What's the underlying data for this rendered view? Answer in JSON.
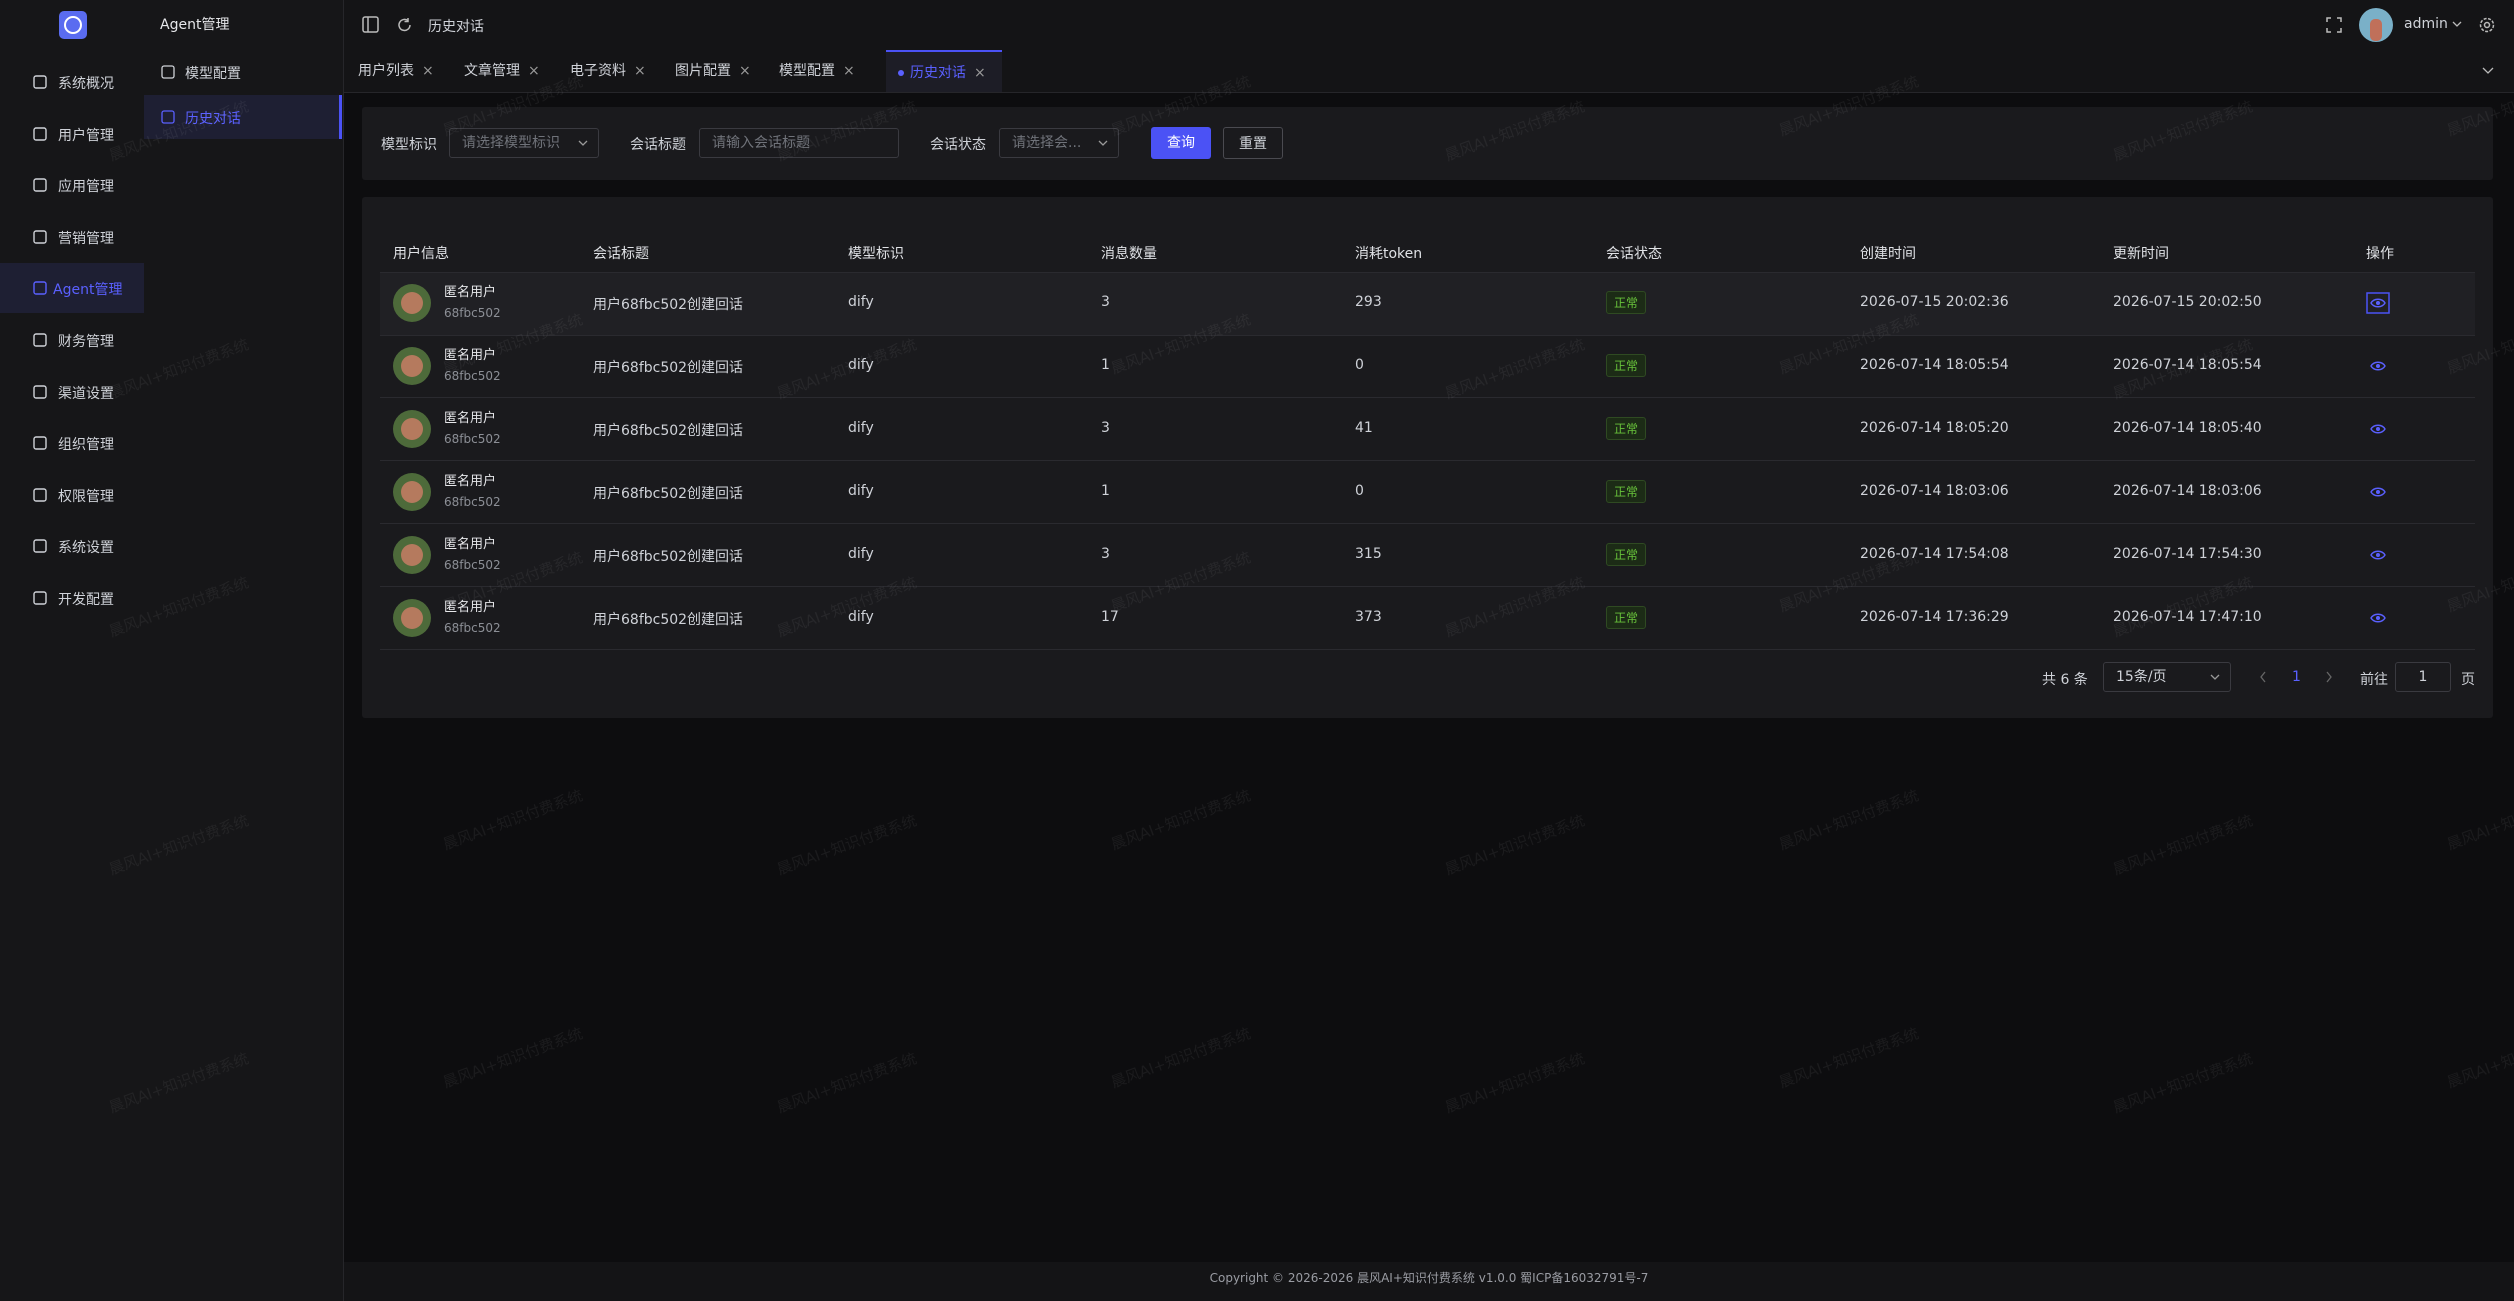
{
  "sidebar": {
    "items": [
      "系统概况",
      "用户管理",
      "应用管理",
      "营销管理",
      "Agent管理",
      "财务管理",
      "渠道设置",
      "组织管理",
      "权限管理",
      "系统设置",
      "开发配置"
    ]
  },
  "submenu": {
    "title": "Agent管理",
    "items": [
      "模型配置",
      "历史对话"
    ]
  },
  "header": {
    "breadcrumb": "历史对话",
    "user": "admin"
  },
  "tabs": [
    "用户列表",
    "文章管理",
    "电子资料",
    "图片配置",
    "模型配置",
    "历史对话"
  ],
  "filters": {
    "fields": [
      {
        "label": "模型标识",
        "placeholder": "请选择模型标识"
      },
      {
        "label": "会话标题",
        "placeholder": "请输入会话标题"
      },
      {
        "label": "会话状态",
        "placeholder": "请选择会..."
      }
    ],
    "buttons": [
      "查询",
      "重置"
    ]
  },
  "table": {
    "columns": [
      "用户信息",
      "会话标题",
      "模型标识",
      "消息数量",
      "消耗token",
      "会话状态",
      "创建时间",
      "更新时间",
      "操作"
    ],
    "rows": [
      [
        "匿名用户",
        "68fbc502",
        "用户68fbc502创建回话",
        "dify",
        3,
        293,
        "正常",
        "2026-07-15 20:02:36",
        "2026-07-15 20:02:50"
      ],
      [
        "匿名用户",
        "68fbc502",
        "用户68fbc502创建回话",
        "dify",
        1,
        0,
        "正常",
        "2026-07-14 18:05:54",
        "2026-07-14 18:05:54"
      ],
      [
        "匿名用户",
        "68fbc502",
        "用户68fbc502创建回话",
        "dify",
        3,
        41,
        "正常",
        "2026-07-14 18:05:20",
        "2026-07-14 18:05:40"
      ],
      [
        "匿名用户",
        "68fbc502",
        "用户68fbc502创建回话",
        "dify",
        1,
        0,
        "正常",
        "2026-07-14 18:03:06",
        "2026-07-14 18:03:06"
      ],
      [
        "匿名用户",
        "68fbc502",
        "用户68fbc502创建回话",
        "dify",
        3,
        315,
        "正常",
        "2026-07-14 17:54:08",
        "2026-07-14 17:54:30"
      ],
      [
        "匿名用户",
        "68fbc502",
        "用户68fbc502创建回话",
        "dify",
        17,
        373,
        "正常",
        "2026-07-14 17:36:29",
        "2026-07-14 17:47:10"
      ]
    ]
  },
  "pagination": {
    "total": "共 6 条",
    "page_size": "15条/页",
    "page": "1",
    "goto": "前往",
    "goto_value": "1",
    "unit": "页"
  },
  "watermark": "晨风AI+知识付费系统",
  "footer": "Copyright © 2026-2026 晨风AI+知识付费系统 v1.0.0  蜀ICP备16032791号-7"
}
